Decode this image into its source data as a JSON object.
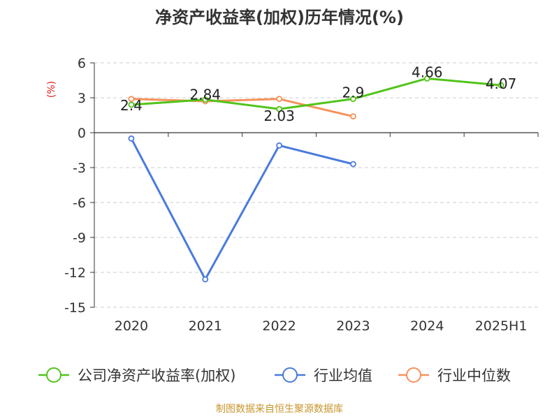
{
  "chart_data": {
    "type": "line",
    "title": "净资产收益率(加权)历年情况(%)",
    "ylabel": "(%)",
    "categories": [
      "2020",
      "2021",
      "2022",
      "2023",
      "2024",
      "2025H1"
    ],
    "ylim": [
      -15,
      6
    ],
    "yticks": [
      "6",
      "3",
      "0",
      "-3",
      "-6",
      "-9",
      "-12",
      "-15"
    ],
    "ytick_values": [
      6,
      3,
      0,
      -3,
      -6,
      -9,
      -12,
      -15
    ],
    "grid": true,
    "legend_position": "bottom",
    "series": [
      {
        "name": "公司净资产收益率(加权)",
        "color": "#52c41a",
        "values": [
          2.4,
          2.84,
          2.03,
          2.9,
          4.66,
          4.07
        ],
        "labels": [
          "2.4",
          "2.84",
          "2.03",
          "2.9",
          "4.66",
          "4.07"
        ]
      },
      {
        "name": "行业均值",
        "color": "#4a7bdc",
        "values": [
          -0.5,
          -12.6,
          -1.1,
          -2.7,
          null,
          null
        ]
      },
      {
        "name": "行业中位数",
        "color": "#f5915a",
        "values": [
          2.9,
          2.7,
          2.9,
          1.4,
          null,
          null
        ]
      }
    ]
  },
  "source": "制图数据来自恒生聚源数据库"
}
